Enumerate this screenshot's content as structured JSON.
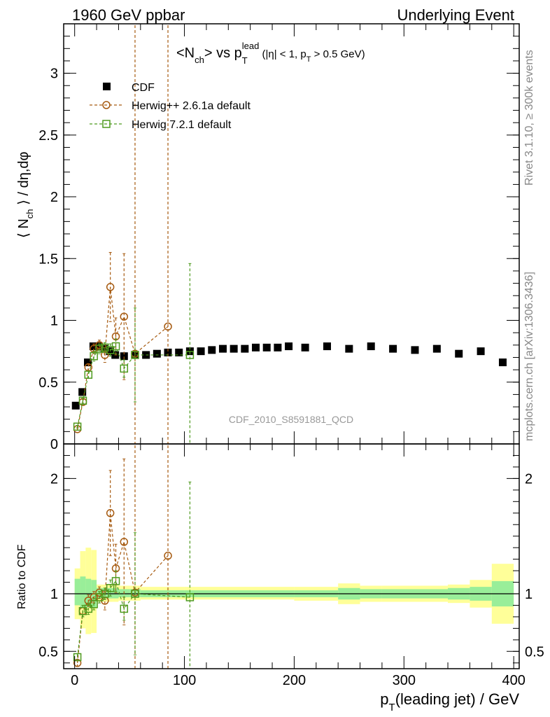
{
  "header": {
    "left": "1960 GeV ppbar",
    "right": "Underlying Event"
  },
  "side": {
    "rivet": "Rivet 3.1.10, ≥ 300k events",
    "mcplots": "mcplots.cern.ch [arXiv:1306.3436]"
  },
  "chart_data": [
    {
      "type": "scatter",
      "panel": "main",
      "title": "<N_ch> vs p_T^lead (|η| < 1, p_T > 0.5 GeV)",
      "title_parts": {
        "lt": "<N",
        "ch": "ch",
        "gt_vs": "> vs p",
        "lead": "lead",
        "T": "T",
        "cond1": " (|η| < 1, p",
        "T2": "T",
        "cond2": " > 0.5 GeV)"
      },
      "ylabel": "⟨ N_ch ⟩ / dη,dφ",
      "ylabel_parts": {
        "open": "⟨ N",
        "sub": "ch",
        "close": " ⟩ / dη,dφ"
      },
      "watermark": "CDF_2010_S8591881_QCD",
      "xlim": [
        -10,
        405
      ],
      "ylim": [
        0,
        3.4
      ],
      "y_ticks": [
        {
          "v": 0,
          "label": "0"
        },
        {
          "v": 0.5,
          "label": "0.5"
        },
        {
          "v": 1,
          "label": "1"
        },
        {
          "v": 1.5,
          "label": "1.5"
        },
        {
          "v": 2,
          "label": "2"
        },
        {
          "v": 2.5,
          "label": "2.5"
        },
        {
          "v": 3,
          "label": "3"
        }
      ],
      "legend_position": "top-left",
      "series": [
        {
          "name": "CDF",
          "marker": "filled-square",
          "color": "#000000",
          "points": [
            {
              "x": 1,
              "y": 0.31
            },
            {
              "x": 7,
              "y": 0.42
            },
            {
              "x": 12,
              "y": 0.66
            },
            {
              "x": 17,
              "y": 0.79
            },
            {
              "x": 22,
              "y": 0.79
            },
            {
              "x": 27,
              "y": 0.77
            },
            {
              "x": 32,
              "y": 0.75
            },
            {
              "x": 37,
              "y": 0.72
            },
            {
              "x": 45,
              "y": 0.71
            },
            {
              "x": 55,
              "y": 0.72
            },
            {
              "x": 65,
              "y": 0.72
            },
            {
              "x": 75,
              "y": 0.73
            },
            {
              "x": 85,
              "y": 0.74
            },
            {
              "x": 95,
              "y": 0.74
            },
            {
              "x": 105,
              "y": 0.75
            },
            {
              "x": 115,
              "y": 0.75
            },
            {
              "x": 125,
              "y": 0.76
            },
            {
              "x": 135,
              "y": 0.77
            },
            {
              "x": 145,
              "y": 0.77
            },
            {
              "x": 155,
              "y": 0.77
            },
            {
              "x": 165,
              "y": 0.78
            },
            {
              "x": 175,
              "y": 0.78
            },
            {
              "x": 185,
              "y": 0.78
            },
            {
              "x": 195,
              "y": 0.79
            },
            {
              "x": 210,
              "y": 0.78
            },
            {
              "x": 230,
              "y": 0.79
            },
            {
              "x": 250,
              "y": 0.77
            },
            {
              "x": 270,
              "y": 0.79
            },
            {
              "x": 290,
              "y": 0.77
            },
            {
              "x": 310,
              "y": 0.76
            },
            {
              "x": 330,
              "y": 0.77
            },
            {
              "x": 350,
              "y": 0.73
            },
            {
              "x": 370,
              "y": 0.75
            },
            {
              "x": 390,
              "y": 0.66
            }
          ]
        },
        {
          "name": "Herwig++ 2.6.1a default",
          "marker": "open-circle",
          "color": "#a65a10",
          "points": [
            {
              "x": 2.5,
              "y": 0.12,
              "err": 0.01
            },
            {
              "x": 7.5,
              "y": 0.34,
              "err": 0.02
            },
            {
              "x": 12.5,
              "y": 0.62,
              "err": 0.03
            },
            {
              "x": 17.5,
              "y": 0.77,
              "err": 0.04
            },
            {
              "x": 22.5,
              "y": 0.8,
              "err": 0.04
            },
            {
              "x": 27.5,
              "y": 0.72,
              "err": 0.06
            },
            {
              "x": 32.5,
              "y": 1.27,
              "err": 0.28
            },
            {
              "x": 37.5,
              "y": 0.87,
              "err": 0.15
            },
            {
              "x": 45,
              "y": 1.03,
              "err": 0.51
            },
            {
              "x": 55,
              "y": 0.73,
              "err": 5.0
            },
            {
              "x": 85,
              "y": 0.95,
              "err": 5.0
            }
          ]
        },
        {
          "name": "Herwig 7.2.1 default",
          "marker": "open-square",
          "color": "#4e9a1e",
          "points": [
            {
              "x": 2.5,
              "y": 0.14,
              "err": 0.01
            },
            {
              "x": 7.5,
              "y": 0.35,
              "err": 0.02
            },
            {
              "x": 12.5,
              "y": 0.56,
              "err": 0.03
            },
            {
              "x": 17.5,
              "y": 0.71,
              "err": 0.04
            },
            {
              "x": 22.5,
              "y": 0.77,
              "err": 0.04
            },
            {
              "x": 27.5,
              "y": 0.78,
              "err": 0.04
            },
            {
              "x": 32.5,
              "y": 0.76,
              "err": 0.05
            },
            {
              "x": 37.5,
              "y": 0.79,
              "err": 0.06
            },
            {
              "x": 45,
              "y": 0.61,
              "err": 0.07
            },
            {
              "x": 55,
              "y": 0.72,
              "err": 0.38
            },
            {
              "x": 105,
              "y": 0.72,
              "err": 0.74
            }
          ]
        }
      ]
    },
    {
      "type": "scatter",
      "panel": "ratio",
      "ylabel": "Ratio to CDF",
      "xlabel": "p_T(leading jet) / GeV",
      "xlabel_parts": {
        "p": "p",
        "T": "T",
        "rest": "(leading jet) / GeV"
      },
      "xlim": [
        -10,
        405
      ],
      "ylim": [
        0.35,
        2.3
      ],
      "y_ticks": [
        {
          "v": 0.5,
          "label": "0.5"
        },
        {
          "v": 1,
          "label": "1"
        },
        {
          "v": 2,
          "label": "2"
        }
      ],
      "x_ticks": [
        {
          "v": 0,
          "label": "0"
        },
        {
          "v": 100,
          "label": "100"
        },
        {
          "v": 200,
          "label": "200"
        },
        {
          "v": 300,
          "label": "300"
        },
        {
          "v": 400,
          "label": "400"
        }
      ],
      "bands": [
        {
          "x0": 0,
          "x1": 5,
          "in": [
            0.9,
            1.13
          ],
          "out": [
            0.78,
            1.22
          ]
        },
        {
          "x0": 5,
          "x1": 10,
          "in": [
            0.88,
            1.15
          ],
          "out": [
            0.7,
            1.37
          ]
        },
        {
          "x0": 10,
          "x1": 15,
          "in": [
            0.88,
            1.13
          ],
          "out": [
            0.65,
            1.4
          ]
        },
        {
          "x0": 15,
          "x1": 20,
          "in": [
            0.88,
            1.12
          ],
          "out": [
            0.66,
            1.38
          ]
        },
        {
          "x0": 20,
          "x1": 25,
          "in": [
            0.96,
            1.05
          ],
          "out": [
            0.93,
            1.08
          ]
        },
        {
          "x0": 25,
          "x1": 30,
          "in": [
            0.96,
            1.05
          ],
          "out": [
            0.93,
            1.08
          ]
        },
        {
          "x0": 30,
          "x1": 35,
          "in": [
            0.96,
            1.05
          ],
          "out": [
            0.93,
            1.08
          ]
        },
        {
          "x0": 35,
          "x1": 40,
          "in": [
            0.96,
            1.05
          ],
          "out": [
            0.93,
            1.08
          ]
        },
        {
          "x0": 40,
          "x1": 50,
          "in": [
            0.97,
            1.04
          ],
          "out": [
            0.94,
            1.07
          ]
        },
        {
          "x0": 50,
          "x1": 60,
          "in": [
            0.97,
            1.04
          ],
          "out": [
            0.94,
            1.07
          ]
        },
        {
          "x0": 60,
          "x1": 100,
          "in": [
            0.97,
            1.03
          ],
          "out": [
            0.95,
            1.06
          ]
        },
        {
          "x0": 100,
          "x1": 200,
          "in": [
            0.97,
            1.03
          ],
          "out": [
            0.95,
            1.06
          ]
        },
        {
          "x0": 200,
          "x1": 240,
          "in": [
            0.97,
            1.03
          ],
          "out": [
            0.94,
            1.06
          ]
        },
        {
          "x0": 240,
          "x1": 260,
          "in": [
            0.95,
            1.05
          ],
          "out": [
            0.91,
            1.09
          ]
        },
        {
          "x0": 260,
          "x1": 280,
          "in": [
            0.96,
            1.04
          ],
          "out": [
            0.93,
            1.07
          ]
        },
        {
          "x0": 280,
          "x1": 340,
          "in": [
            0.96,
            1.04
          ],
          "out": [
            0.93,
            1.07
          ]
        },
        {
          "x0": 340,
          "x1": 360,
          "in": [
            0.95,
            1.05
          ],
          "out": [
            0.92,
            1.08
          ]
        },
        {
          "x0": 360,
          "x1": 380,
          "in": [
            0.94,
            1.06
          ],
          "out": [
            0.88,
            1.12
          ]
        },
        {
          "x0": 380,
          "x1": 400,
          "in": [
            0.89,
            1.11
          ],
          "out": [
            0.74,
            1.26
          ]
        }
      ],
      "band_colors": {
        "inner": "#99ee99",
        "outer": "#ffff99"
      },
      "series": [
        {
          "name": "Herwig++ 2.6.1a default",
          "marker": "open-circle",
          "color": "#a65a10",
          "points": [
            {
              "x": 2.5,
              "y": 0.4,
              "err": 0.03
            },
            {
              "x": 7.5,
              "y": 0.85,
              "err": 0.05
            },
            {
              "x": 12.5,
              "y": 0.94,
              "err": 0.05
            },
            {
              "x": 17.5,
              "y": 0.97,
              "err": 0.05
            },
            {
              "x": 22.5,
              "y": 1.01,
              "err": 0.05
            },
            {
              "x": 27.5,
              "y": 0.94,
              "err": 0.08
            },
            {
              "x": 32.5,
              "y": 1.7,
              "err": 0.37
            },
            {
              "x": 37.5,
              "y": 1.22,
              "err": 0.21
            },
            {
              "x": 45,
              "y": 1.45,
              "err": 0.72
            },
            {
              "x": 55,
              "y": 1.01,
              "err": 5.0
            },
            {
              "x": 85,
              "y": 1.33,
              "err": 5.0
            }
          ]
        },
        {
          "name": "Herwig 7.2.1 default",
          "marker": "open-square",
          "color": "#4e9a1e",
          "points": [
            {
              "x": 2.5,
              "y": 0.45,
              "err": 0.03
            },
            {
              "x": 7.5,
              "y": 0.85,
              "err": 0.05
            },
            {
              "x": 12.5,
              "y": 0.87,
              "err": 0.05
            },
            {
              "x": 17.5,
              "y": 0.91,
              "err": 0.05
            },
            {
              "x": 22.5,
              "y": 0.97,
              "err": 0.05
            },
            {
              "x": 27.5,
              "y": 1.0,
              "err": 0.05
            },
            {
              "x": 32.5,
              "y": 1.05,
              "err": 0.07
            },
            {
              "x": 37.5,
              "y": 1.11,
              "err": 0.09
            },
            {
              "x": 45,
              "y": 0.87,
              "err": 0.1
            },
            {
              "x": 55,
              "y": 1.0,
              "err": 0.53
            },
            {
              "x": 105,
              "y": 0.97,
              "err": 1.0
            }
          ]
        }
      ]
    }
  ]
}
